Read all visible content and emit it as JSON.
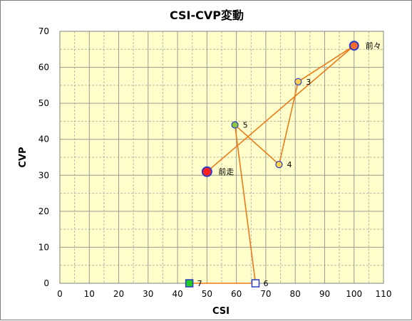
{
  "chart_data": {
    "type": "scatter",
    "title": "CSI-CVP変動",
    "xlabel": "CSI",
    "ylabel": "CVP",
    "xlim": [
      0,
      110
    ],
    "ylim": [
      0,
      70
    ],
    "xticks": [
      0,
      10,
      20,
      30,
      40,
      50,
      60,
      70,
      80,
      90,
      100,
      110
    ],
    "yticks": [
      0,
      10,
      20,
      30,
      40,
      50,
      60,
      70
    ],
    "grid": true,
    "line_color": "#ee7a1a",
    "plot_background": "#ffffcc",
    "points": [
      {
        "label": "前走",
        "x": 50,
        "y": 31,
        "marker": "circle",
        "fill": "#ff2020",
        "stroke": "#2a3cc8"
      },
      {
        "label": "前々",
        "x": 100,
        "y": 66,
        "marker": "circle",
        "fill": "#f26b2a",
        "stroke": "#2a3cc8"
      },
      {
        "label": "3",
        "x": 81,
        "y": 56,
        "marker": "circle",
        "fill": "#ffd24a",
        "stroke": "#2a3cc8"
      },
      {
        "label": "4",
        "x": 74.5,
        "y": 33,
        "marker": "circle",
        "fill": "#ffd24a",
        "stroke": "#2a3cc8"
      },
      {
        "label": "5",
        "x": 59.5,
        "y": 44,
        "marker": "circle",
        "fill": "#8cc63f",
        "stroke": "#2a3cc8"
      },
      {
        "label": "6",
        "x": 66.5,
        "y": 0,
        "marker": "square",
        "fill": "#ffffff",
        "stroke": "#2a3cc8"
      },
      {
        "label": "7",
        "x": 44,
        "y": 0,
        "marker": "square",
        "fill": "#22cc22",
        "stroke": "#2a3cc8"
      }
    ]
  }
}
